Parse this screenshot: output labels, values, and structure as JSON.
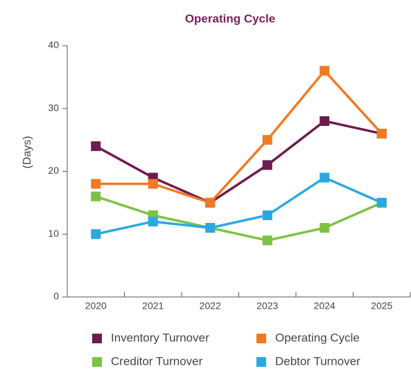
{
  "chart_data": {
    "type": "line",
    "title": "Operating Cycle",
    "ylabel": "(Days)",
    "categories": [
      "2020",
      "2021",
      "2022",
      "2023",
      "2024",
      "2025"
    ],
    "series": [
      {
        "name": "Inventory Turnover",
        "color": "#6d1b4f",
        "values": [
          24,
          19,
          15,
          21,
          28,
          26
        ]
      },
      {
        "name": "Operating Cycle",
        "color": "#f07a22",
        "values": [
          18,
          18,
          15,
          25,
          36,
          26
        ]
      },
      {
        "name": "Creditor Turnover",
        "color": "#7dc242",
        "values": [
          16,
          13,
          11,
          9,
          11,
          15
        ]
      },
      {
        "name": "Debtor Turnover",
        "color": "#29a9e0",
        "values": [
          10,
          12,
          11,
          13,
          19,
          15
        ]
      }
    ],
    "ylim": [
      0,
      40
    ],
    "yticks": [
      0,
      10,
      20,
      30,
      40
    ],
    "grid": false,
    "legend": "bottom"
  }
}
